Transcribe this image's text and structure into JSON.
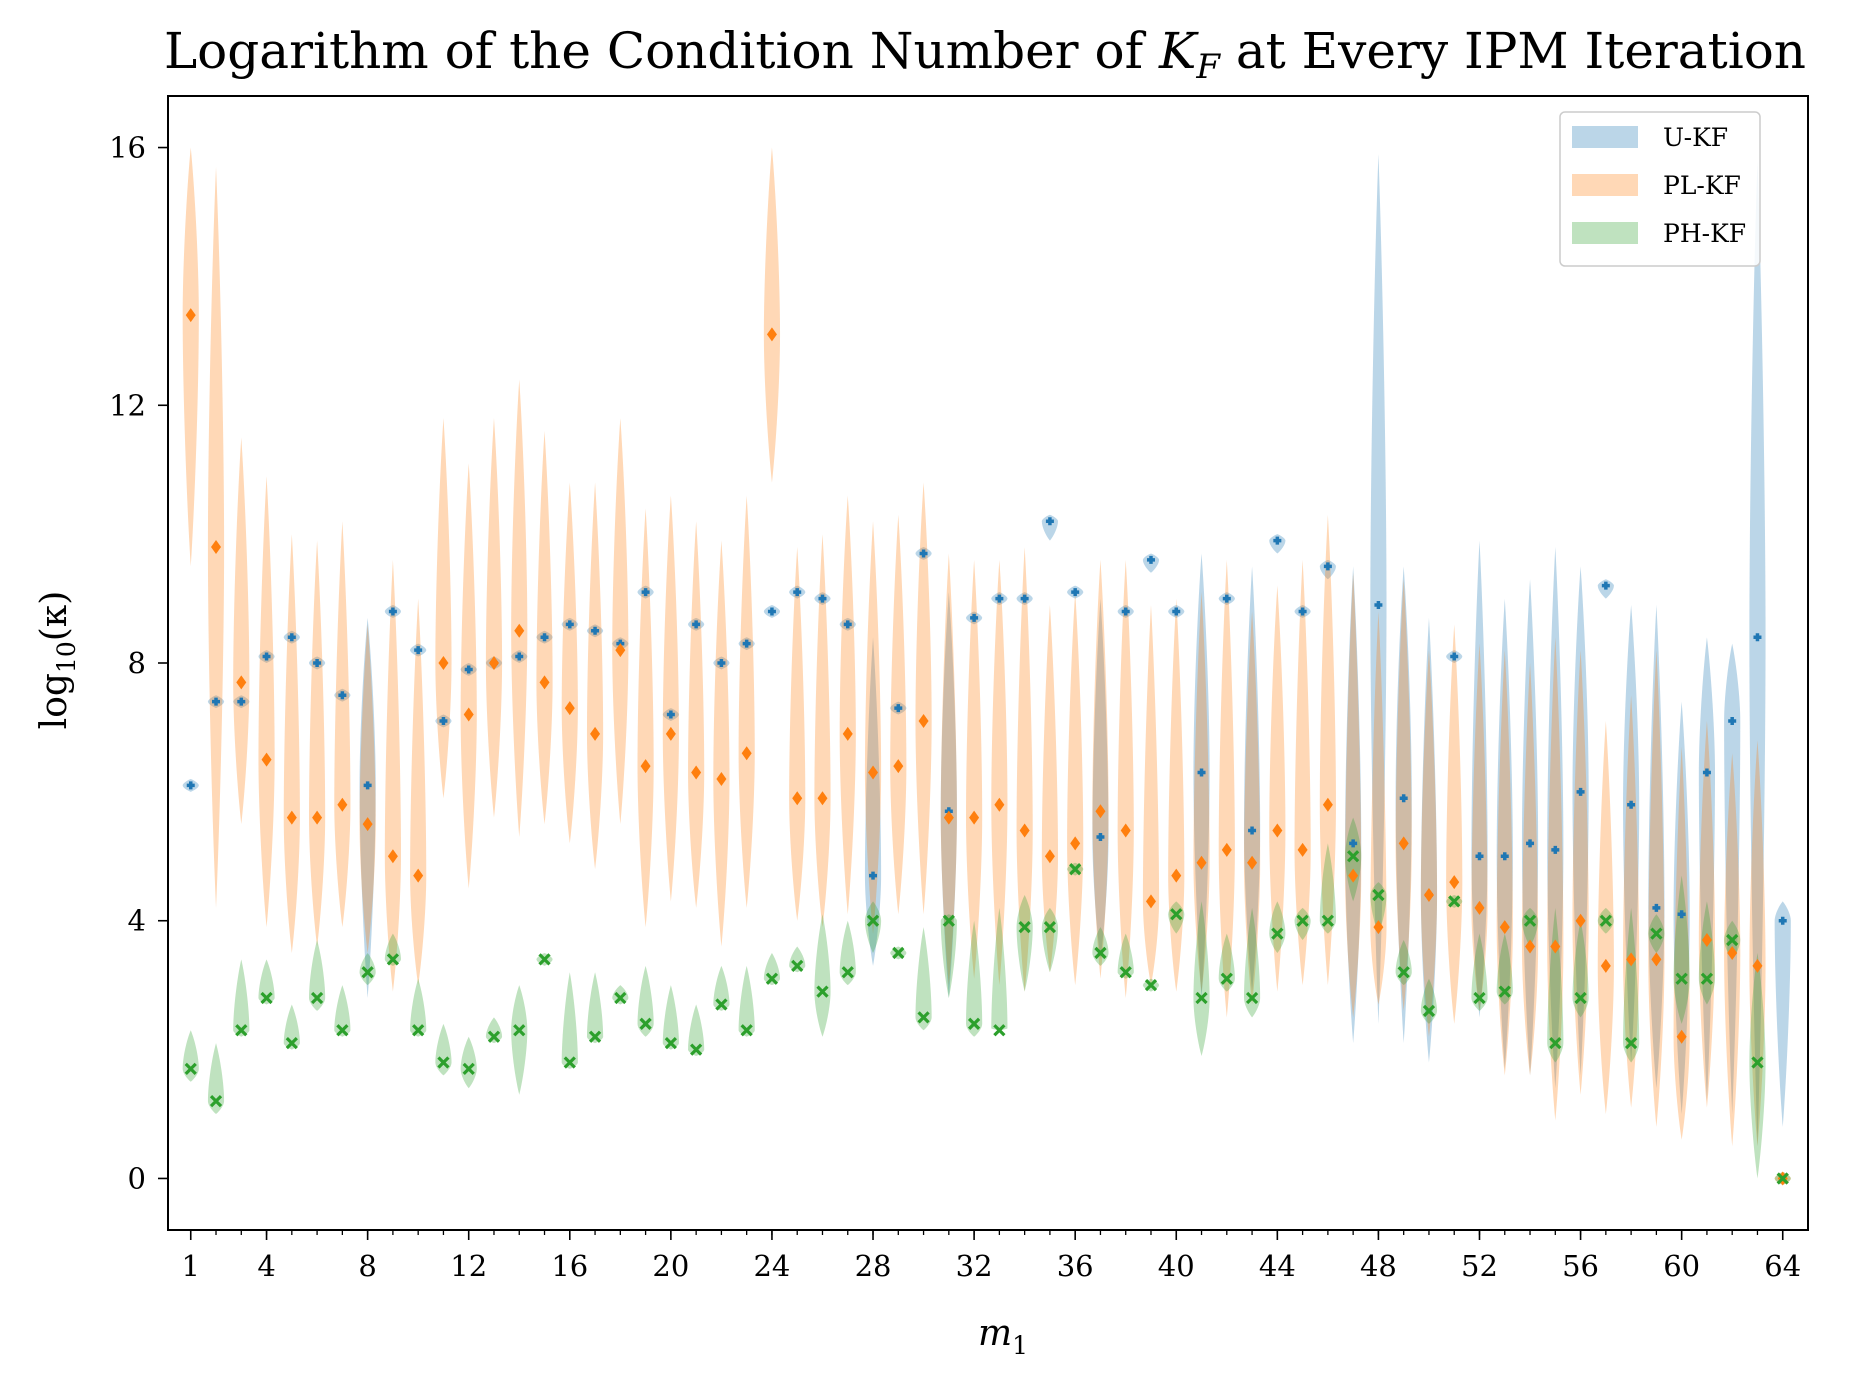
{
  "chart_data": {
    "type": "violin",
    "title": "Logarithm of the Condition Number of K_F at Every IPM Iteration",
    "title_prefix": "Logarithm of the Condition Number of ",
    "title_var": "K",
    "title_sub": "F",
    "title_suffix": " at Every IPM Iteration",
    "xlabel": "m",
    "xlabel_sub": "1",
    "ylabel_prefix": "log",
    "ylabel_sub": "10",
    "ylabel_arg": "(κ)",
    "xlim": [
      0.1,
      65.0
    ],
    "ylim": [
      -0.8,
      16.8
    ],
    "x_major_ticks": [
      1,
      4,
      8,
      12,
      16,
      20,
      24,
      28,
      32,
      36,
      40,
      44,
      48,
      52,
      56,
      60,
      64
    ],
    "x_tick_labels": [
      "1",
      "4",
      "8",
      "12",
      "16",
      "20",
      "24",
      "28",
      "32",
      "36",
      "40",
      "44",
      "48",
      "52",
      "56",
      "60",
      "64"
    ],
    "y_ticks": [
      0,
      4,
      8,
      12,
      16
    ],
    "y_tick_labels": [
      "0",
      "4",
      "8",
      "12",
      "16"
    ],
    "legend": {
      "position": "top-right",
      "entries": [
        {
          "label": "U-KF",
          "color": "#1f77b4"
        },
        {
          "label": "PL-KF",
          "color": "#ff7f0e"
        },
        {
          "label": "PH-KF",
          "color": "#2ca02c"
        }
      ]
    },
    "series": [
      {
        "name": "U-KF",
        "color": "#1f77b4",
        "marker": "plus",
        "x": [
          1,
          2,
          3,
          4,
          5,
          6,
          7,
          8,
          9,
          10,
          11,
          12,
          13,
          14,
          15,
          16,
          17,
          18,
          19,
          20,
          21,
          22,
          23,
          24,
          25,
          26,
          27,
          28,
          29,
          30,
          31,
          32,
          33,
          34,
          35,
          36,
          37,
          38,
          39,
          40,
          41,
          42,
          43,
          44,
          45,
          46,
          47,
          48,
          49,
          50,
          51,
          52,
          53,
          54,
          55,
          56,
          57,
          58,
          59,
          60,
          61,
          62,
          63,
          64
        ],
        "median": [
          6.1,
          7.4,
          7.4,
          8.1,
          8.4,
          8.0,
          7.5,
          6.1,
          8.8,
          8.2,
          7.1,
          7.9,
          8.0,
          8.1,
          8.4,
          8.6,
          8.5,
          8.3,
          9.1,
          7.2,
          8.6,
          8.0,
          8.3,
          8.8,
          9.1,
          9.0,
          8.6,
          4.7,
          7.3,
          9.7,
          5.7,
          8.7,
          9.0,
          9.0,
          10.2,
          9.1,
          5.3,
          8.8,
          9.6,
          8.8,
          6.3,
          9.0,
          5.4,
          9.9,
          8.8,
          9.5,
          5.2,
          8.9,
          5.9,
          4.4,
          8.1,
          5.0,
          5.0,
          5.2,
          5.1,
          6.0,
          9.2,
          5.8,
          4.2,
          4.1,
          6.3,
          7.1,
          8.4,
          4.0
        ],
        "low": [
          6.0,
          7.3,
          7.3,
          8.0,
          8.3,
          7.9,
          7.4,
          2.8,
          8.7,
          8.1,
          7.0,
          7.8,
          7.9,
          8.0,
          8.3,
          8.5,
          8.4,
          8.2,
          9.0,
          7.1,
          8.5,
          7.9,
          8.2,
          8.7,
          9.0,
          8.9,
          8.5,
          3.3,
          7.2,
          9.6,
          2.8,
          8.6,
          8.9,
          8.9,
          9.9,
          9.0,
          3.4,
          8.7,
          9.4,
          8.7,
          2.8,
          8.9,
          2.9,
          9.7,
          8.7,
          9.3,
          2.1,
          2.4,
          2.1,
          1.8,
          8.0,
          2.5,
          1.7,
          1.6,
          1.4,
          1.6,
          9.0,
          1.8,
          1.4,
          1.0,
          1.2,
          1.0,
          0.5,
          0.8
        ],
        "high": [
          6.2,
          7.5,
          7.5,
          8.2,
          8.5,
          8.1,
          7.6,
          8.7,
          8.9,
          8.3,
          7.2,
          8.0,
          8.1,
          8.2,
          8.5,
          8.7,
          8.6,
          8.4,
          9.2,
          7.3,
          8.7,
          8.1,
          8.4,
          8.9,
          9.2,
          9.1,
          8.7,
          8.4,
          7.4,
          9.8,
          9.1,
          8.8,
          9.1,
          9.1,
          10.3,
          9.2,
          9.0,
          8.9,
          9.7,
          8.9,
          9.7,
          9.1,
          9.5,
          10.0,
          8.9,
          9.6,
          9.5,
          15.9,
          9.5,
          8.7,
          8.2,
          9.9,
          9.0,
          9.3,
          9.8,
          9.5,
          9.3,
          8.9,
          8.9,
          7.4,
          8.4,
          8.3,
          15.8,
          4.3
        ]
      },
      {
        "name": "PL-KF",
        "color": "#ff7f0e",
        "marker": "diamond",
        "x": [
          1,
          2,
          3,
          4,
          5,
          6,
          7,
          8,
          9,
          10,
          11,
          12,
          13,
          14,
          15,
          16,
          17,
          18,
          19,
          20,
          21,
          22,
          23,
          24,
          25,
          26,
          27,
          28,
          29,
          30,
          31,
          32,
          33,
          34,
          35,
          36,
          37,
          38,
          39,
          40,
          41,
          42,
          43,
          44,
          45,
          46,
          47,
          48,
          49,
          50,
          51,
          52,
          53,
          54,
          55,
          56,
          57,
          58,
          59,
          60,
          61,
          62,
          63,
          64
        ],
        "median": [
          13.4,
          9.8,
          7.7,
          6.5,
          5.6,
          5.6,
          5.8,
          5.5,
          5.0,
          4.7,
          8.0,
          7.2,
          8.0,
          8.5,
          7.7,
          7.3,
          6.9,
          8.2,
          6.4,
          6.9,
          6.3,
          6.2,
          6.6,
          13.1,
          5.9,
          5.9,
          6.9,
          6.3,
          6.4,
          7.1,
          5.6,
          5.6,
          5.8,
          5.4,
          5.0,
          5.2,
          5.7,
          5.4,
          4.3,
          4.7,
          4.9,
          5.1,
          4.9,
          5.4,
          5.1,
          5.8,
          4.7,
          3.9,
          5.2,
          4.4,
          4.6,
          4.2,
          3.9,
          3.6,
          3.6,
          4.0,
          3.3,
          3.4,
          3.4,
          2.2,
          3.7,
          3.5,
          3.3,
          0.0
        ],
        "low": [
          9.5,
          4.2,
          5.5,
          3.9,
          3.5,
          3.6,
          3.9,
          3.5,
          2.9,
          3.0,
          5.9,
          4.5,
          5.6,
          5.3,
          5.5,
          5.2,
          4.8,
          5.5,
          3.9,
          4.3,
          4.2,
          3.6,
          4.2,
          10.8,
          4.0,
          3.9,
          4.1,
          3.8,
          4.1,
          4.1,
          3.0,
          3.1,
          3.0,
          2.9,
          3.2,
          3.0,
          3.1,
          2.8,
          3.0,
          2.9,
          2.9,
          2.5,
          2.7,
          2.9,
          3.0,
          3.0,
          2.5,
          2.7,
          2.6,
          2.2,
          2.4,
          2.6,
          1.6,
          1.6,
          0.9,
          1.3,
          1.0,
          1.1,
          0.8,
          0.6,
          1.1,
          0.5,
          0.5,
          -0.1
        ],
        "high": [
          16.0,
          15.7,
          11.5,
          10.9,
          10.0,
          9.9,
          10.2,
          8.6,
          9.6,
          9.0,
          11.8,
          11.1,
          11.8,
          12.4,
          11.6,
          10.8,
          10.8,
          11.8,
          10.4,
          10.6,
          10.2,
          9.9,
          10.6,
          16.0,
          9.8,
          10.0,
          10.6,
          10.2,
          10.3,
          10.8,
          9.7,
          9.6,
          9.6,
          9.8,
          8.9,
          9.1,
          9.6,
          9.6,
          8.9,
          9.0,
          9.1,
          9.6,
          8.8,
          9.2,
          9.6,
          10.3,
          9.4,
          8.8,
          9.3,
          8.2,
          8.6,
          8.3,
          8.2,
          8.0,
          8.4,
          8.2,
          7.1,
          7.5,
          8.2,
          6.7,
          7.1,
          6.6,
          6.8,
          0.1
        ]
      },
      {
        "name": "PH-KF",
        "color": "#2ca02c",
        "marker": "x",
        "x": [
          1,
          2,
          3,
          4,
          5,
          6,
          7,
          8,
          9,
          10,
          11,
          12,
          13,
          14,
          15,
          16,
          17,
          18,
          19,
          20,
          21,
          22,
          23,
          24,
          25,
          26,
          27,
          28,
          29,
          30,
          31,
          32,
          33,
          34,
          35,
          36,
          37,
          38,
          39,
          40,
          41,
          42,
          43,
          44,
          45,
          46,
          47,
          48,
          49,
          50,
          51,
          52,
          53,
          54,
          55,
          56,
          57,
          58,
          59,
          60,
          61,
          62,
          63,
          64
        ],
        "median": [
          1.7,
          1.2,
          2.3,
          2.8,
          2.1,
          2.8,
          2.3,
          3.2,
          3.4,
          2.3,
          1.8,
          1.7,
          2.2,
          2.3,
          3.4,
          1.8,
          2.2,
          2.8,
          2.4,
          2.1,
          2.0,
          2.7,
          2.3,
          3.1,
          3.3,
          2.9,
          3.2,
          4.0,
          3.5,
          2.5,
          4.0,
          2.4,
          2.3,
          3.9,
          3.9,
          4.8,
          3.5,
          3.2,
          3.0,
          4.1,
          2.8,
          3.1,
          2.8,
          3.8,
          4.0,
          4.0,
          5.0,
          4.4,
          3.2,
          2.6,
          4.3,
          2.8,
          2.9,
          4.0,
          2.1,
          2.8,
          4.0,
          2.1,
          3.8,
          3.1,
          3.1,
          3.7,
          1.8,
          0.0
        ],
        "low": [
          1.5,
          1.0,
          2.2,
          2.7,
          2.0,
          2.6,
          2.2,
          3.0,
          3.3,
          2.2,
          1.6,
          1.4,
          2.1,
          1.3,
          3.3,
          1.7,
          2.1,
          2.7,
          2.2,
          2.0,
          1.9,
          2.6,
          2.2,
          3.0,
          3.2,
          2.2,
          3.0,
          3.5,
          3.4,
          2.3,
          2.8,
          2.2,
          2.3,
          2.9,
          3.2,
          4.7,
          3.3,
          3.1,
          2.9,
          3.8,
          1.9,
          2.9,
          2.5,
          3.5,
          3.7,
          3.8,
          4.3,
          3.8,
          3.0,
          2.4,
          4.2,
          2.6,
          2.7,
          3.6,
          1.8,
          2.5,
          3.8,
          1.8,
          3.5,
          2.4,
          2.7,
          3.4,
          0.0,
          -0.1
        ],
        "high": [
          2.3,
          2.1,
          3.4,
          3.4,
          2.7,
          3.7,
          3.0,
          3.5,
          3.8,
          3.1,
          2.4,
          2.2,
          2.5,
          3.0,
          3.5,
          3.2,
          3.2,
          3.0,
          3.3,
          3.0,
          2.7,
          3.3,
          3.3,
          3.5,
          3.6,
          4.1,
          4.0,
          4.3,
          3.6,
          3.9,
          4.1,
          4.0,
          4.2,
          4.4,
          4.2,
          4.9,
          3.9,
          3.8,
          3.1,
          4.3,
          4.3,
          3.8,
          4.2,
          4.3,
          4.2,
          5.2,
          5.6,
          4.6,
          3.7,
          3.1,
          4.4,
          3.8,
          3.8,
          4.2,
          4.2,
          4.0,
          4.2,
          4.2,
          4.1,
          4.7,
          4.3,
          4.0,
          3.5,
          0.1
        ]
      }
    ]
  }
}
